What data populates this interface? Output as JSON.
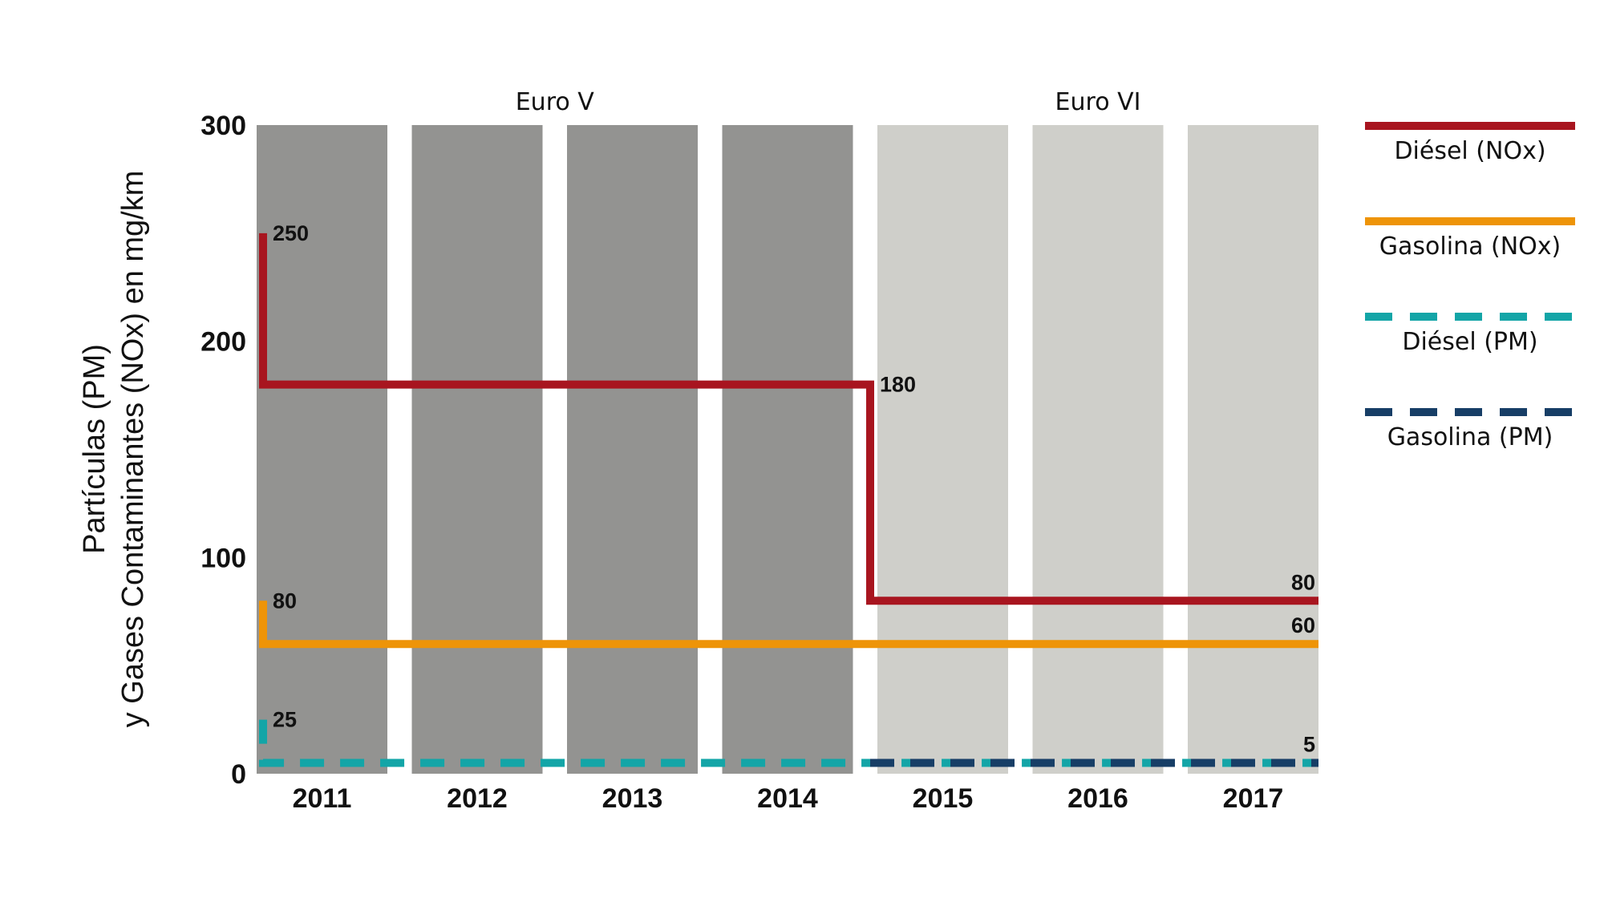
{
  "chart_data": {
    "type": "line",
    "ylabel_line1": "Partículas (PM)",
    "ylabel_line2": "y Gases Contaminantes (NOx) en mg/km",
    "ylim": [
      0,
      300
    ],
    "yticks": [
      "0",
      "100",
      "200",
      "300"
    ],
    "categories": [
      "2011",
      "2012",
      "2013",
      "2014",
      "2015",
      "2016",
      "2017"
    ],
    "eras": [
      {
        "label": "Euro V",
        "years": [
          "2011",
          "2012",
          "2013",
          "2014"
        ],
        "color": "#939391"
      },
      {
        "label": "Euro VI",
        "years": [
          "2015",
          "2016",
          "2017"
        ],
        "color": "#cfcfca"
      }
    ],
    "series": [
      {
        "name": "Diésel (NOx)",
        "color": "#a8151f",
        "style": "solid",
        "steps": [
          [
            2011,
            250
          ],
          [
            2011,
            180
          ],
          [
            2015,
            180
          ],
          [
            2015,
            80
          ],
          [
            2017,
            80
          ]
        ]
      },
      {
        "name": "Gasolina (NOx)",
        "color": "#ee9408",
        "style": "solid",
        "steps": [
          [
            2011,
            80
          ],
          [
            2011,
            60
          ],
          [
            2017,
            60
          ]
        ]
      },
      {
        "name": "Diésel (PM)",
        "color": "#13a5a7",
        "style": "dashed",
        "steps": [
          [
            2011,
            25
          ],
          [
            2011,
            5
          ],
          [
            2017,
            5
          ]
        ]
      },
      {
        "name": "Gasolina (PM)",
        "color": "#173e66",
        "style": "dashed",
        "steps": [
          [
            2015,
            5
          ],
          [
            2017,
            5
          ]
        ]
      }
    ],
    "data_labels": [
      {
        "text": "250",
        "x": 2011,
        "y": 250,
        "anchor": "after"
      },
      {
        "text": "180",
        "x": 2015,
        "y": 180,
        "anchor": "after"
      },
      {
        "text": "80",
        "x": 2017,
        "y": 80,
        "anchor": "end"
      },
      {
        "text": "80",
        "x": 2011,
        "y": 80,
        "anchor": "after"
      },
      {
        "text": "60",
        "x": 2017,
        "y": 60,
        "anchor": "end"
      },
      {
        "text": "25",
        "x": 2011,
        "y": 25,
        "anchor": "after"
      },
      {
        "text": "5",
        "x": 2017,
        "y": 5,
        "anchor": "end"
      }
    ],
    "legend_position": "right",
    "grid": false
  }
}
